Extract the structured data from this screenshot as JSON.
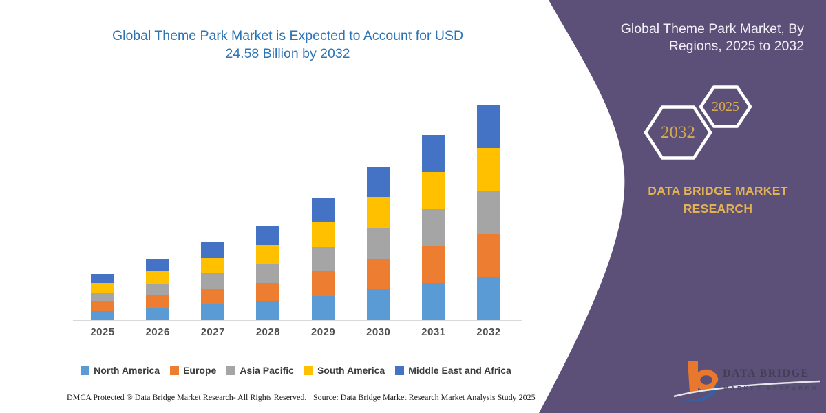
{
  "chart_data": {
    "type": "bar",
    "stacked": true,
    "title": "Global Theme Park Market is Expected to Account for USD 24.58 Billion by 2032",
    "unit": "USD Billion",
    "categories": [
      "2025",
      "2026",
      "2027",
      "2028",
      "2029",
      "2030",
      "2031",
      "2032"
    ],
    "series": [
      {
        "name": "North America",
        "color": "#5B9BD5",
        "values": [
          1.06,
          1.4,
          1.78,
          2.14,
          2.8,
          3.52,
          4.24,
          4.92
        ]
      },
      {
        "name": "Europe",
        "color": "#ED7D31",
        "values": [
          1.06,
          1.4,
          1.78,
          2.14,
          2.8,
          3.52,
          4.24,
          4.92
        ]
      },
      {
        "name": "Asia Pacific",
        "color": "#A5A5A5",
        "values": [
          1.06,
          1.4,
          1.78,
          2.14,
          2.8,
          3.52,
          4.24,
          4.92
        ]
      },
      {
        "name": "South America",
        "color": "#FFC000",
        "values": [
          1.06,
          1.4,
          1.78,
          2.14,
          2.8,
          3.52,
          4.24,
          4.92
        ]
      },
      {
        "name": "Middle East and Africa",
        "color": "#4472C4",
        "values": [
          1.06,
          1.4,
          1.78,
          2.14,
          2.8,
          3.52,
          4.24,
          4.9
        ]
      }
    ],
    "totals_estimated": [
      5.3,
      7.0,
      8.9,
      10.7,
      14.0,
      17.6,
      21.2,
      24.58
    ],
    "ylim": [
      0,
      26
    ],
    "grid": false,
    "y_axis_visible": false,
    "legend_position": "bottom",
    "title_color": "#2E74B5"
  },
  "panel": {
    "title": "Global Theme Park Market, By Regions, 2025 to 2032",
    "hexagon_big": {
      "label": "2032"
    },
    "hexagon_small": {
      "label": "2025"
    },
    "brand": "DATA BRIDGE MARKET RESEARCH",
    "logo": {
      "line1": "DATA BRIDGE",
      "line2": "MARKET RESEARCH"
    },
    "colors": {
      "background": "#5C5078",
      "hex_border": "#FFFFFF",
      "year_gold": "#D5A94E",
      "brand_gold": "#E2B254",
      "logo_orange": "#E8782D",
      "logo_blue": "#3A5F9F"
    }
  },
  "footer": {
    "left": "DMCA Protected ® Data Bridge Market Research-  All Rights Reserved.",
    "right": "Source: Data Bridge Market Research  Market Analysis Study 2025"
  }
}
